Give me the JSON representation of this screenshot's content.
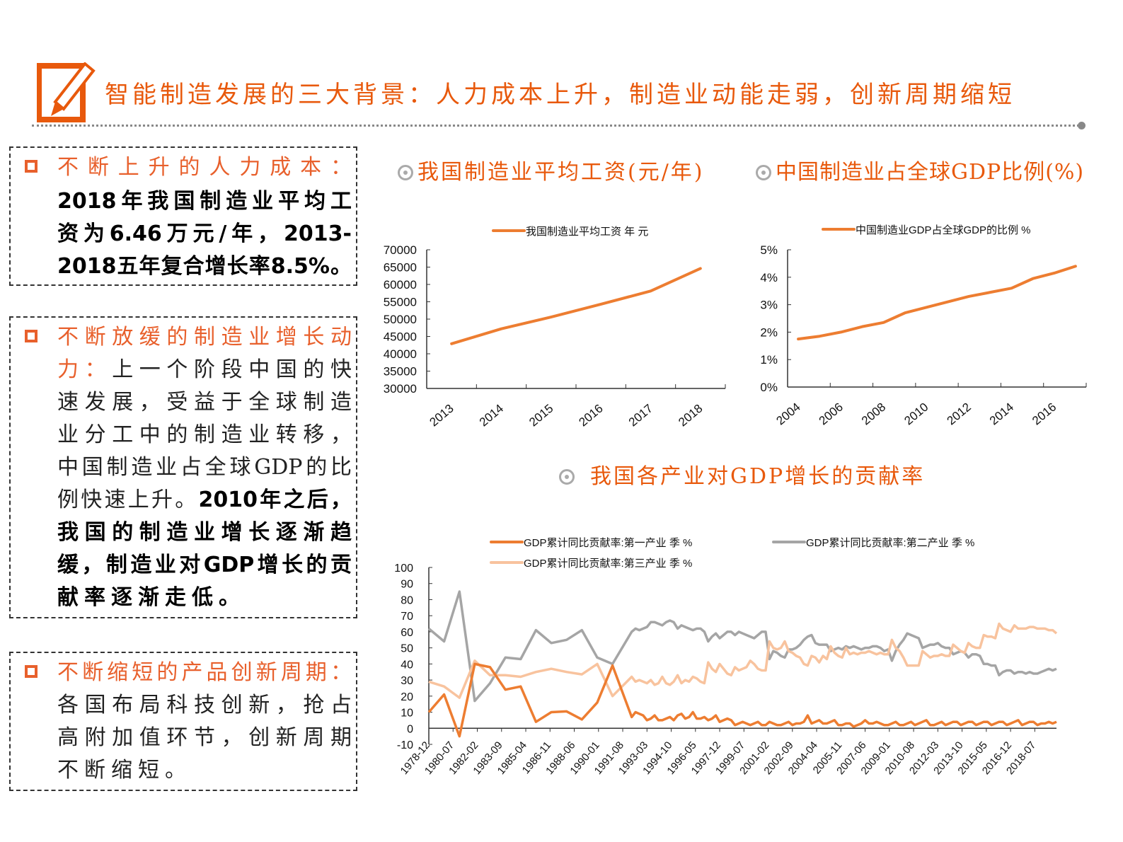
{
  "header": {
    "title": "智能制造发展的三大背景：人力成本上升，制造业动能走弱，创新周期缩短",
    "icon": "pencil-square-icon",
    "accent_color": "#e8590c"
  },
  "boxes": [
    {
      "lines": [
        [
          {
            "t": "不断上升的人力成本：",
            "s": "h"
          }
        ],
        [
          {
            "t": "2018年我国制造业平均工",
            "s": "b"
          }
        ],
        [
          {
            "t": "资为6.46万元/年，2013-",
            "s": "b"
          }
        ],
        [
          {
            "t": "2018五年复合增长率8.5%。",
            "s": "b"
          }
        ]
      ]
    },
    {
      "lines": [
        [
          {
            "t": "不断放缓的制造业增长动",
            "s": "h"
          }
        ],
        [
          {
            "t": "力：",
            "s": "h"
          },
          {
            "t": "上一个阶段中国的快",
            "s": "n"
          }
        ],
        [
          {
            "t": "速发展，受益于全球制造",
            "s": "n"
          }
        ],
        [
          {
            "t": "业分工中的制造业转移，",
            "s": "n"
          }
        ],
        [
          {
            "t": "中国制造业占全球GDP的比",
            "s": "n"
          }
        ],
        [
          {
            "t": "例快速上升。",
            "s": "n"
          },
          {
            "t": "2010年之后，",
            "s": "b"
          }
        ],
        [
          {
            "t": "我国的制造业增长逐渐趋",
            "s": "b"
          }
        ],
        [
          {
            "t": "缓，制造业对GDP增长的贡",
            "s": "b"
          }
        ],
        [
          {
            "t": "献率逐渐走低。",
            "s": "b"
          }
        ]
      ]
    },
    {
      "lines": [
        [
          {
            "t": "不断缩短的产品创新周期：",
            "s": "h"
          }
        ],
        [
          {
            "t": "各国布局科技创新，抢占",
            "s": "n"
          }
        ],
        [
          {
            "t": "高附加值环节，创新周期",
            "s": "n"
          }
        ],
        [
          {
            "t": "不断缩短。",
            "s": "n"
          }
        ]
      ]
    }
  ],
  "chart_titles": {
    "wage": "我国制造业平均工资(元/年)",
    "share": "中国制造业占全球GDP比例(%)",
    "contrib": "我国各产业对GDP增长的贡献率"
  },
  "chart_data": [
    {
      "type": "line",
      "categories": [
        "2013",
        "2014",
        "2015",
        "2016",
        "2017",
        "2018"
      ],
      "series": [
        {
          "name": "我国制造业平均工资 年 元",
          "values": [
            42900,
            47200,
            50600,
            54300,
            58100,
            64600
          ],
          "color": "#ed7d31"
        }
      ],
      "ylim": [
        30000,
        70000
      ],
      "yticks": [
        "30000",
        "35000",
        "40000",
        "45000",
        "50000",
        "55000",
        "60000",
        "65000",
        "70000"
      ],
      "legend": "top",
      "grid": false
    },
    {
      "type": "line",
      "categories": [
        "2004",
        "2005",
        "2006",
        "2007",
        "2008",
        "2009",
        "2010",
        "2011",
        "2012",
        "2013",
        "2014",
        "2015",
        "2016",
        "2017"
      ],
      "xtick_labels": [
        "2004",
        "2006",
        "2008",
        "2010",
        "2012",
        "2014",
        "2016"
      ],
      "series": [
        {
          "name": "中国制造业GDP占全球GDP的比例 %",
          "values": [
            1.75,
            1.85,
            2.0,
            2.2,
            2.35,
            2.7,
            2.9,
            3.1,
            3.3,
            3.45,
            3.6,
            3.95,
            4.15,
            4.4
          ],
          "color": "#ed7d31"
        }
      ],
      "ylim": [
        0,
        5
      ],
      "yticks": [
        "0%",
        "1%",
        "2%",
        "3%",
        "4%",
        "5%"
      ],
      "legend": "top",
      "grid": false
    },
    {
      "type": "line",
      "ylim": [
        -10,
        100
      ],
      "yticks": [
        "-10",
        "0",
        "10",
        "20",
        "30",
        "40",
        "50",
        "60",
        "70",
        "80",
        "90",
        "100"
      ],
      "xtick_labels": [
        "1978-12",
        "1980-07",
        "1982-02",
        "1983-09",
        "1985-04",
        "1986-11",
        "1988-06",
        "1990-01",
        "1991-08",
        "1993-03",
        "1994-10",
        "1996-05",
        "1997-12",
        "1999-07",
        "2001-02",
        "2002-09",
        "2004-04",
        "2005-11",
        "2007-06",
        "2009-01",
        "2010-08",
        "2012-03",
        "2013-10",
        "2015-05",
        "2016-12",
        "2018-07"
      ],
      "legend": "top",
      "grid": false,
      "annual_x": [
        "1978-12",
        "1979-12",
        "1980-12",
        "1981-12",
        "1982-12",
        "1983-12",
        "1984-12",
        "1985-12",
        "1986-12",
        "1987-12",
        "1988-12",
        "1989-12",
        "1990-12"
      ],
      "quarterly_x_from": "1992-03",
      "quarterly_x_to": "2019-12",
      "series": [
        {
          "name": "GDP累计同比贡献率:第一产业 季 %",
          "color": "#ed7d31",
          "annual": [
            10,
            21,
            -5,
            40,
            38,
            24,
            26,
            4,
            10,
            10.5,
            5.5,
            16,
            39
          ],
          "quarterly": [
            7,
            10,
            9,
            8,
            5,
            6,
            8,
            5,
            5,
            6,
            7,
            5,
            8,
            9,
            6,
            7,
            10,
            6,
            6,
            7,
            5,
            6,
            8,
            4,
            5,
            6,
            5,
            2,
            3,
            4,
            3,
            2,
            3,
            4,
            2,
            2,
            4,
            3,
            2,
            2,
            3,
            4,
            2,
            3,
            3,
            4,
            8,
            3,
            4,
            5,
            3,
            3,
            4,
            5,
            2,
            2,
            3,
            3,
            1,
            2,
            3,
            5,
            3,
            3,
            4,
            3,
            2,
            2,
            3,
            4,
            2,
            2,
            3,
            4,
            2,
            3,
            4,
            5,
            2,
            2,
            3,
            4,
            2,
            3,
            4,
            4,
            2,
            3,
            4,
            4,
            2,
            3,
            4,
            4,
            2,
            3,
            4,
            4,
            2,
            3,
            4,
            5,
            2,
            3,
            4,
            4,
            2,
            3,
            3,
            4,
            3,
            4
          ]
        },
        {
          "name": "GDP累计同比贡献率:第二产业 季 %",
          "color": "#a5a5a5",
          "annual": [
            62,
            54,
            85,
            17,
            28,
            44,
            43,
            61,
            53,
            55,
            61,
            44,
            40
          ],
          "quarterly": [
            60,
            62,
            61,
            62,
            63,
            66,
            66,
            65,
            64,
            66,
            67,
            66,
            62,
            64,
            63,
            62,
            61,
            62,
            62,
            60,
            54,
            57,
            59,
            56,
            58,
            60,
            60,
            58,
            60,
            59,
            58,
            57,
            56,
            58,
            60,
            60,
            43,
            48,
            47,
            45,
            44,
            49,
            49,
            50,
            52,
            55,
            57,
            58,
            53,
            52,
            52,
            52,
            48,
            49,
            50,
            49,
            51,
            50,
            51,
            50,
            49,
            50,
            50,
            51,
            51,
            50,
            48,
            49,
            42,
            48,
            52,
            55,
            59,
            58,
            57,
            56,
            50,
            51,
            52,
            52,
            53,
            51,
            50,
            50,
            46,
            47,
            48,
            47,
            44,
            46,
            46,
            45,
            40,
            40,
            39,
            39,
            33,
            35,
            36,
            36,
            34,
            35,
            35,
            34,
            35,
            34,
            34,
            35,
            36,
            37,
            36,
            37
          ]
        },
        {
          "name": "GDP累计同比贡献率:第三产业 季 %",
          "color": "#f8c39e",
          "annual": [
            29,
            26,
            19,
            42,
            33,
            33,
            32,
            35,
            37,
            35,
            33.5,
            40,
            20
          ],
          "quarterly": [
            32,
            29,
            30,
            29,
            28,
            30,
            27,
            28,
            32,
            28,
            27,
            29,
            33,
            28,
            30,
            29,
            32,
            31,
            29,
            28,
            41,
            37,
            35,
            40,
            37,
            34,
            33,
            38,
            36,
            37,
            38,
            42,
            40,
            37,
            36,
            36,
            54,
            50,
            49,
            50,
            54,
            48,
            47,
            45,
            44,
            40,
            39,
            45,
            44,
            41,
            45,
            43,
            51,
            47,
            45,
            44,
            50,
            46,
            47,
            46,
            47,
            47,
            48,
            47,
            46,
            47,
            46,
            46,
            55,
            50,
            48,
            44,
            39,
            39,
            39,
            39,
            48,
            46,
            44,
            45,
            45,
            46,
            45,
            45,
            52,
            50,
            48,
            47,
            53,
            51,
            50,
            50,
            58,
            57,
            57,
            56,
            65,
            62,
            61,
            60,
            64,
            62,
            62,
            62,
            63,
            63,
            62,
            62,
            62,
            61,
            61,
            59
          ]
        }
      ]
    }
  ]
}
